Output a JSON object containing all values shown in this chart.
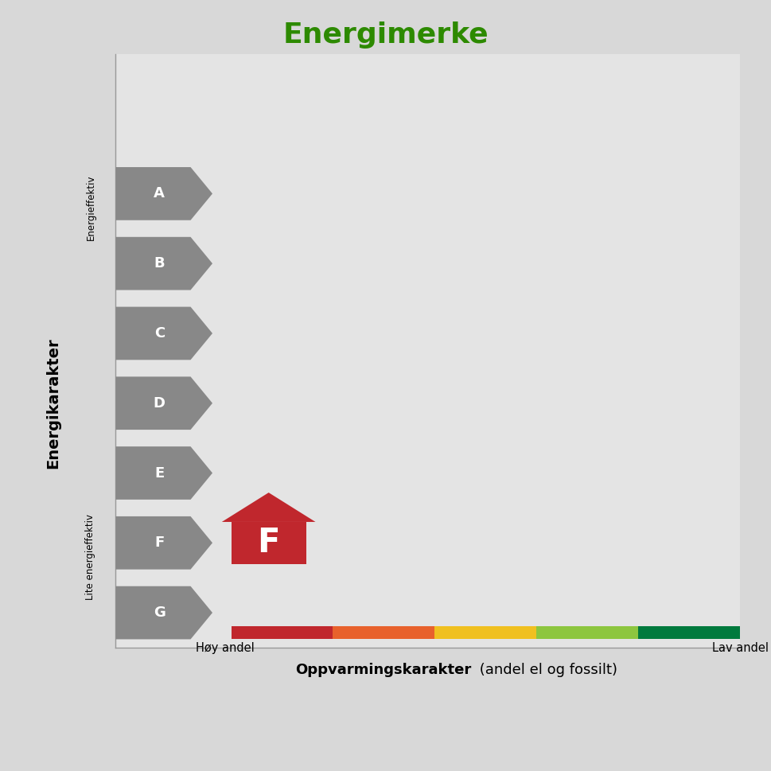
{
  "title": "Energimerke",
  "title_color": "#2d8a00",
  "title_fontsize": 26,
  "bg_color": "#d8d8d8",
  "plot_bg_color": "#e4e4e4",
  "ylabel": "Energikarakter",
  "xlabel_bold": "Oppvarmingskarakter",
  "xlabel_normal": " (andel el og fossilt)",
  "grades": [
    "A",
    "B",
    "C",
    "D",
    "E",
    "F",
    "G"
  ],
  "arrow_color": "#888888",
  "arrow_text_color": "#ffffff",
  "active_grade": "F",
  "active_grade_color": "#c0272d",
  "colorbar_colors": [
    "#c0272d",
    "#e8612c",
    "#f0c020",
    "#8dc63f",
    "#007a3d"
  ],
  "x_label_left": "Høy andel",
  "x_label_right": "Lav andel",
  "y_label_top": "Energieffektiv",
  "y_label_bottom": "Lite energieffektiv",
  "grid_color": "#c0c0c0"
}
